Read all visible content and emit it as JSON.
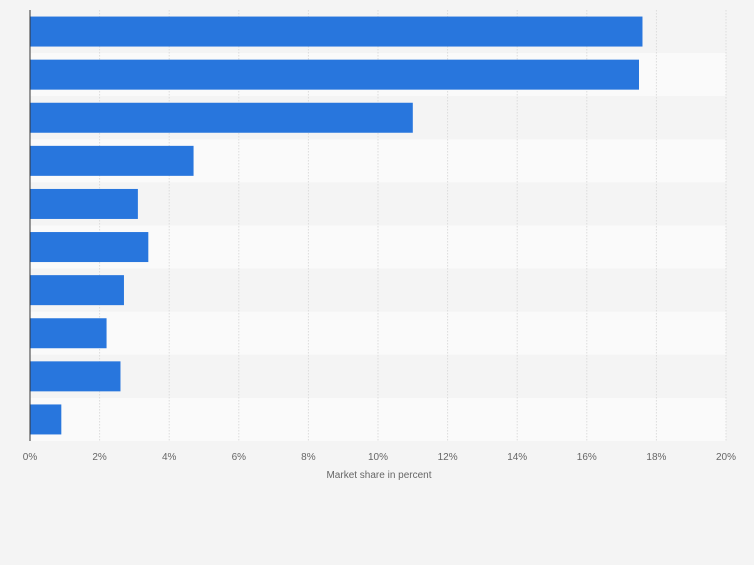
{
  "chart_data": {
    "type": "bar",
    "orientation": "horizontal",
    "title": "",
    "categories": [
      "",
      "",
      "",
      "",
      "",
      "",
      "",
      "",
      "",
      ""
    ],
    "values": [
      17.6,
      17.5,
      11.0,
      4.7,
      3.1,
      3.4,
      2.7,
      2.2,
      2.6,
      0.9
    ],
    "xlabel": "Market share in percent",
    "ylabel": "",
    "xlim": [
      0,
      20
    ],
    "x_ticks": [
      0,
      2,
      4,
      6,
      8,
      10,
      12,
      14,
      16,
      18,
      20
    ],
    "x_tick_labels": [
      "0%",
      "2%",
      "4%",
      "6%",
      "8%",
      "10%",
      "12%",
      "14%",
      "16%",
      "18%",
      "20%"
    ],
    "grid": true,
    "legend": "none"
  },
  "colors": {
    "background": "#f4f4f4",
    "bar": "#2876dd",
    "band_dark": "#f4f4f4",
    "band_light": "#fafafa",
    "gridline": "#dcdcdc",
    "axis": "#333333",
    "tick_text": "#666666"
  }
}
